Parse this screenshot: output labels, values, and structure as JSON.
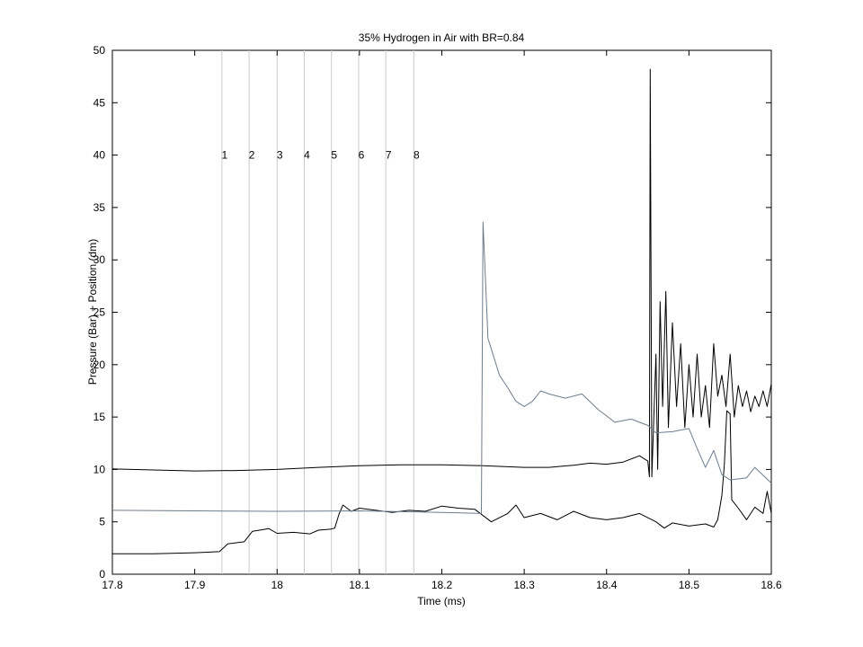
{
  "chart_data": {
    "type": "line",
    "title": "35% Hydrogen in Air with BR=0.84",
    "xlabel": "Time (ms)",
    "ylabel": "Pressure (Bar) + Position (dm)",
    "xlim": [
      17.8,
      18.6
    ],
    "ylim": [
      0,
      50
    ],
    "grid": false,
    "x_ticks": [
      17.8,
      17.9,
      18.0,
      18.1,
      18.2,
      18.3,
      18.4,
      18.5,
      18.6
    ],
    "x_tick_labels": [
      "17.8",
      "17.9",
      "18",
      "18.1",
      "18.2",
      "18.3",
      "18.4",
      "18.5",
      "18.6"
    ],
    "y_ticks": [
      0,
      5,
      10,
      15,
      20,
      25,
      30,
      35,
      40,
      45,
      50
    ],
    "y_tick_labels": [
      "0",
      "5",
      "10",
      "15",
      "20",
      "25",
      "30",
      "35",
      "40",
      "45",
      "50"
    ],
    "markers": {
      "x": [
        17.933,
        17.966,
        18.0,
        18.033,
        18.066,
        18.099,
        18.132,
        18.166
      ],
      "labels": [
        "1",
        "2",
        "3",
        "4",
        "5",
        "6",
        "7",
        "8"
      ],
      "label_y": 40,
      "color": "#c8ccd0"
    },
    "series": [
      {
        "color": "#000000",
        "points": [
          [
            17.8,
            10.05
          ],
          [
            17.85,
            9.95
          ],
          [
            17.9,
            9.85
          ],
          [
            17.95,
            9.9
          ],
          [
            18.0,
            10.0
          ],
          [
            18.05,
            10.2
          ],
          [
            18.1,
            10.35
          ],
          [
            18.15,
            10.45
          ],
          [
            18.2,
            10.45
          ],
          [
            18.25,
            10.35
          ],
          [
            18.3,
            10.2
          ],
          [
            18.33,
            10.2
          ],
          [
            18.36,
            10.4
          ],
          [
            18.38,
            10.6
          ],
          [
            18.4,
            10.5
          ],
          [
            18.42,
            10.7
          ],
          [
            18.44,
            11.3
          ],
          [
            18.45,
            10.8
          ],
          [
            18.452,
            9.3
          ],
          [
            18.453,
            48.2
          ],
          [
            18.455,
            9.3
          ],
          [
            18.46,
            21
          ],
          [
            18.462,
            10
          ],
          [
            18.465,
            26
          ],
          [
            18.468,
            16
          ],
          [
            18.472,
            27
          ],
          [
            18.475,
            14
          ],
          [
            18.48,
            24
          ],
          [
            18.485,
            16
          ],
          [
            18.49,
            22
          ],
          [
            18.495,
            14
          ],
          [
            18.5,
            20
          ],
          [
            18.505,
            15
          ],
          [
            18.51,
            21
          ],
          [
            18.515,
            15
          ],
          [
            18.52,
            18
          ],
          [
            18.525,
            14
          ],
          [
            18.53,
            22
          ],
          [
            18.535,
            17
          ],
          [
            18.54,
            19
          ],
          [
            18.545,
            16
          ],
          [
            18.55,
            21
          ],
          [
            18.555,
            15
          ],
          [
            18.56,
            18
          ],
          [
            18.565,
            16
          ],
          [
            18.57,
            17.5
          ],
          [
            18.575,
            15.5
          ],
          [
            18.58,
            17
          ],
          [
            18.585,
            16
          ],
          [
            18.59,
            17.5
          ],
          [
            18.595,
            16
          ],
          [
            18.6,
            18.2
          ]
        ]
      },
      {
        "color": "#000000",
        "points": [
          [
            17.8,
            1.95
          ],
          [
            17.85,
            1.95
          ],
          [
            17.9,
            2.05
          ],
          [
            17.93,
            2.15
          ],
          [
            17.94,
            2.9
          ],
          [
            17.96,
            3.1
          ],
          [
            17.97,
            4.1
          ],
          [
            17.99,
            4.35
          ],
          [
            18.0,
            3.9
          ],
          [
            18.02,
            4.0
          ],
          [
            18.04,
            3.85
          ],
          [
            18.05,
            4.2
          ],
          [
            18.065,
            4.3
          ],
          [
            18.07,
            4.4
          ],
          [
            18.075,
            5.7
          ],
          [
            18.08,
            6.6
          ],
          [
            18.09,
            6.0
          ],
          [
            18.1,
            6.3
          ],
          [
            18.12,
            6.1
          ],
          [
            18.14,
            5.9
          ],
          [
            18.16,
            6.1
          ],
          [
            18.18,
            6.0
          ],
          [
            18.2,
            6.5
          ],
          [
            18.22,
            6.3
          ],
          [
            18.24,
            6.2
          ],
          [
            18.25,
            5.6
          ],
          [
            18.26,
            5.0
          ],
          [
            18.28,
            5.8
          ],
          [
            18.29,
            6.6
          ],
          [
            18.3,
            5.4
          ],
          [
            18.32,
            5.8
          ],
          [
            18.34,
            5.2
          ],
          [
            18.36,
            6.0
          ],
          [
            18.38,
            5.4
          ],
          [
            18.4,
            5.2
          ],
          [
            18.42,
            5.4
          ],
          [
            18.44,
            5.8
          ],
          [
            18.46,
            5.0
          ],
          [
            18.47,
            4.4
          ],
          [
            18.48,
            4.9
          ],
          [
            18.5,
            4.6
          ],
          [
            18.52,
            4.8
          ],
          [
            18.53,
            4.5
          ],
          [
            18.535,
            5.2
          ],
          [
            18.54,
            7.5
          ],
          [
            18.543,
            10.5
          ],
          [
            18.546,
            15.6
          ],
          [
            18.55,
            15.3
          ],
          [
            18.552,
            7.1
          ],
          [
            18.56,
            6.3
          ],
          [
            18.57,
            5.2
          ],
          [
            18.58,
            6.4
          ],
          [
            18.59,
            5.8
          ],
          [
            18.595,
            7.9
          ],
          [
            18.6,
            5.8
          ]
        ]
      },
      {
        "color": "#6e7c8c",
        "points": [
          [
            17.8,
            6.1
          ],
          [
            17.9,
            6.05
          ],
          [
            18.0,
            6.0
          ],
          [
            18.1,
            6.05
          ],
          [
            18.2,
            5.9
          ],
          [
            18.248,
            5.8
          ],
          [
            18.25,
            33.6
          ],
          [
            18.253,
            28
          ],
          [
            18.256,
            22.5
          ],
          [
            18.26,
            21.5
          ],
          [
            18.27,
            19
          ],
          [
            18.28,
            17.8
          ],
          [
            18.29,
            16.5
          ],
          [
            18.3,
            16.0
          ],
          [
            18.31,
            16.5
          ],
          [
            18.32,
            17.5
          ],
          [
            18.33,
            17.2
          ],
          [
            18.35,
            16.8
          ],
          [
            18.37,
            17.2
          ],
          [
            18.39,
            15.7
          ],
          [
            18.41,
            14.5
          ],
          [
            18.43,
            14.8
          ],
          [
            18.45,
            14.2
          ],
          [
            18.46,
            13.5
          ],
          [
            18.48,
            13.6
          ],
          [
            18.5,
            13.9
          ],
          [
            18.51,
            12.0
          ],
          [
            18.52,
            10.2
          ],
          [
            18.53,
            11.8
          ],
          [
            18.54,
            9.5
          ],
          [
            18.55,
            9.0
          ],
          [
            18.57,
            9.2
          ],
          [
            18.58,
            10.2
          ],
          [
            18.6,
            8.7
          ]
        ]
      }
    ]
  }
}
